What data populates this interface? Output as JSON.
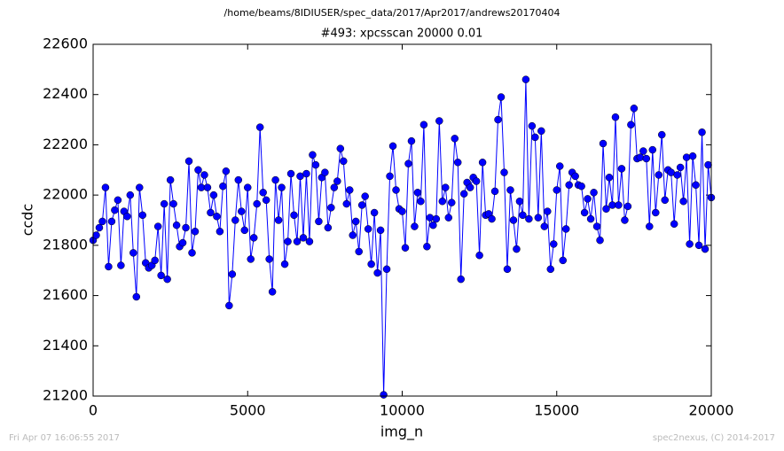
{
  "chart_data": {
    "type": "line",
    "suptitle": "/home/beams/8IDIUSER/spec_data/2017/Apr2017/andrews20170404",
    "title": "#493: xpcsscan 20000 0.01",
    "xlabel": "img_n",
    "ylabel": "ccdc",
    "footer_left": "Fri Apr 07 16:06:55 2017",
    "footer_right": "spec2nexus, (C) 2014-2017",
    "xlim": [
      0,
      20000
    ],
    "xticks": [
      0,
      5000,
      10000,
      15000,
      20000
    ],
    "ylim": [
      21200,
      22600
    ],
    "yticks": [
      21200,
      21400,
      21600,
      21800,
      22000,
      22200,
      22400,
      22600
    ],
    "x": [
      0,
      100,
      200,
      300,
      400,
      500,
      600,
      700,
      800,
      900,
      1000,
      1100,
      1200,
      1300,
      1400,
      1500,
      1600,
      1700,
      1800,
      1900,
      2000,
      2100,
      2200,
      2300,
      2400,
      2500,
      2600,
      2700,
      2800,
      2900,
      3000,
      3100,
      3200,
      3300,
      3400,
      3500,
      3600,
      3700,
      3800,
      3900,
      4000,
      4100,
      4200,
      4300,
      4400,
      4500,
      4600,
      4700,
      4800,
      4900,
      5000,
      5100,
      5200,
      5300,
      5400,
      5500,
      5600,
      5700,
      5800,
      5900,
      6000,
      6100,
      6200,
      6300,
      6400,
      6500,
      6600,
      6700,
      6800,
      6900,
      7000,
      7100,
      7200,
      7300,
      7400,
      7500,
      7600,
      7700,
      7800,
      7900,
      8000,
      8100,
      8200,
      8300,
      8400,
      8500,
      8600,
      8700,
      8800,
      8900,
      9000,
      9100,
      9200,
      9300,
      9400,
      9500,
      9600,
      9700,
      9800,
      9900,
      10000,
      10100,
      10200,
      10300,
      10400,
      10500,
      10600,
      10700,
      10800,
      10900,
      11000,
      11100,
      11200,
      11300,
      11400,
      11500,
      11600,
      11700,
      11800,
      11900,
      12000,
      12100,
      12200,
      12300,
      12400,
      12500,
      12600,
      12700,
      12800,
      12900,
      13000,
      13100,
      13200,
      13300,
      13400,
      13500,
      13600,
      13700,
      13800,
      13900,
      14000,
      14100,
      14200,
      14300,
      14400,
      14500,
      14600,
      14700,
      14800,
      14900,
      15000,
      15100,
      15200,
      15300,
      15400,
      15500,
      15600,
      15700,
      15800,
      15900,
      16000,
      16100,
      16200,
      16300,
      16400,
      16500,
      16600,
      16700,
      16800,
      16900,
      17000,
      17100,
      17200,
      17300,
      17400,
      17500,
      17600,
      17700,
      17800,
      17900,
      18000,
      18100,
      18200,
      18300,
      18400,
      18500,
      18600,
      18700,
      18800,
      18900,
      19000,
      19100,
      19200,
      19300,
      19400,
      19500,
      19600,
      19700,
      19800,
      19900,
      20000
    ],
    "series": [
      {
        "color": "#0000ff",
        "values": [
          21820,
          21840,
          21870,
          21895,
          22030,
          21715,
          21895,
          21940,
          21980,
          21720,
          21935,
          21915,
          22000,
          21770,
          21595,
          22030,
          21920,
          21730,
          21710,
          21720,
          21740,
          21875,
          21680,
          21965,
          21665,
          22060,
          21965,
          21880,
          21795,
          21810,
          21870,
          22135,
          21770,
          21855,
          22100,
          22030,
          22080,
          22030,
          21930,
          22000,
          21915,
          21855,
          22035,
          22095,
          21560,
          21685,
          21900,
          22060,
          21935,
          21860,
          22030,
          21745,
          21830,
          21965,
          22270,
          22010,
          21980,
          21745,
          21615,
          22060,
          21900,
          22030,
          21725,
          21815,
          22085,
          21920,
          21815,
          22075,
          21830,
          22085,
          21815,
          22160,
          22120,
          21895,
          22070,
          22090,
          21870,
          21950,
          22030,
          22055,
          22185,
          22135,
          21965,
          22020,
          21840,
          21895,
          21775,
          21960,
          21995,
          21865,
          21725,
          21930,
          21690,
          21860,
          21205,
          21705,
          22075,
          22195,
          22020,
          21945,
          21935,
          21790,
          22125,
          22215,
          21875,
          22010,
          21975,
          22280,
          21795,
          21910,
          21880,
          21905,
          22295,
          21975,
          22030,
          21910,
          21970,
          22225,
          22130,
          21665,
          22005,
          22050,
          22030,
          22070,
          22055,
          21760,
          22130,
          21920,
          21925,
          21905,
          22015,
          22300,
          22390,
          22090,
          21705,
          22020,
          21900,
          21785,
          21975,
          21920,
          22460,
          21905,
          22275,
          22230,
          21910,
          22255,
          21875,
          21935,
          21705,
          21805,
          22020,
          22115,
          21740,
          21865,
          22040,
          22090,
          22075,
          22040,
          22035,
          21930,
          21985,
          21905,
          22010,
          21875,
          21820,
          22205,
          21945,
          22070,
          21960,
          22310,
          21960,
          22105,
          21900,
          21955,
          22280,
          22345,
          22145,
          22150,
          22175,
          22145,
          21875,
          22180,
          21930,
          22080,
          22240,
          21980,
          22100,
          22090,
          21885,
          22080,
          22110,
          21975,
          22150,
          21805,
          22155,
          22040,
          21800,
          22250,
          21785,
          22120,
          21990
        ]
      }
    ]
  }
}
